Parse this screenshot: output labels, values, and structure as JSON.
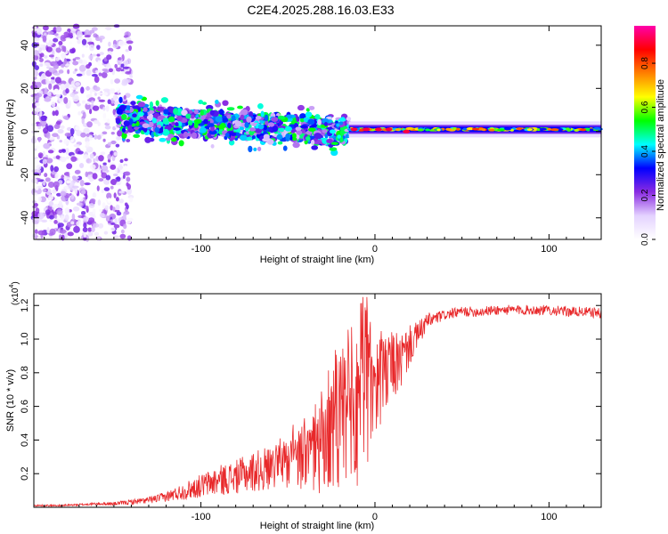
{
  "figure_title": "C2E4.2025.288.16.03.E33",
  "chart_data": [
    {
      "type": "heatmap",
      "title": "C2E4.2025.288.16.03.E33",
      "xlabel": "Height of straight line (km)",
      "ylabel": "Frequency (Hz)",
      "xlim": [
        -196,
        130
      ],
      "ylim": [
        -50,
        49
      ],
      "xticks": [
        -100,
        0,
        100
      ],
      "yticks": [
        -40,
        -20,
        0,
        20,
        40
      ],
      "colorbar": {
        "label": "Normalized spectral amplitude",
        "range": [
          0,
          0.97
        ],
        "ticks": [
          0.0,
          0.2,
          0.4,
          0.6,
          0.8
        ],
        "tick_labels": [
          "0.0",
          "0.2",
          "0.4",
          "0.6",
          "0.8"
        ],
        "colors": [
          "#ffffff",
          "#e4d2ff",
          "#8a2be2",
          "#0000ff",
          "#00ffff",
          "#00ff00",
          "#ffff00",
          "#ff8000",
          "#ff0000",
          "#ff00aa"
        ]
      },
      "regions": [
        {
          "name": "noise",
          "x_range": [
            -196,
            -140
          ],
          "freq_range": [
            -50,
            49
          ],
          "max_amplitude": 0.25
        },
        {
          "name": "signal_band",
          "x_range": [
            -148,
            -15
          ],
          "center_freq_start": 6,
          "center_freq_end": 0,
          "width_hz": 12,
          "max_amplitude": 0.55
        },
        {
          "name": "steady_line",
          "x_range": [
            -15,
            130
          ],
          "center_freq": 1,
          "width_hz": 3,
          "max_amplitude": 0.85
        }
      ]
    },
    {
      "type": "line",
      "xlabel": "Height of straight line (km)",
      "ylabel": "SNR (10 * v/v)",
      "y_multiplier_label": "(x10",
      "y_multiplier_exp": "4",
      "xlim": [
        -196,
        130
      ],
      "ylim": [
        0,
        1.27
      ],
      "xticks": [
        -100,
        0,
        100
      ],
      "yticks": [
        0.2,
        0.4,
        0.6,
        0.8,
        1.0,
        1.2
      ],
      "color": "#e8282a",
      "series": [
        {
          "name": "SNR",
          "x": [
            -196,
            -180,
            -160,
            -150,
            -140,
            -130,
            -120,
            -110,
            -100,
            -90,
            -80,
            -70,
            -60,
            -50,
            -40,
            -30,
            -25,
            -20,
            -15,
            -10,
            -8,
            -5,
            -2,
            0,
            2,
            5,
            8,
            10,
            15,
            20,
            25,
            30,
            40,
            50,
            60,
            70,
            80,
            90,
            100,
            110,
            120,
            130
          ],
          "values": [
            0.01,
            0.01,
            0.02,
            0.02,
            0.03,
            0.04,
            0.06,
            0.09,
            0.12,
            0.15,
            0.17,
            0.2,
            0.22,
            0.25,
            0.28,
            0.33,
            0.38,
            0.42,
            0.45,
            0.5,
            0.6,
            0.7,
            0.75,
            0.7,
            0.75,
            0.72,
            0.78,
            0.82,
            0.85,
            0.95,
            1.02,
            1.1,
            1.14,
            1.16,
            1.16,
            1.17,
            1.17,
            1.17,
            1.17,
            1.16,
            1.16,
            1.15
          ],
          "noise_amplitude": [
            0.005,
            0.005,
            0.008,
            0.01,
            0.015,
            0.02,
            0.03,
            0.05,
            0.07,
            0.09,
            0.1,
            0.12,
            0.14,
            0.16,
            0.2,
            0.3,
            0.35,
            0.45,
            0.5,
            0.55,
            0.6,
            0.55,
            0.5,
            0.35,
            0.3,
            0.25,
            0.22,
            0.2,
            0.18,
            0.12,
            0.08,
            0.05,
            0.03,
            0.03,
            0.03,
            0.03,
            0.03,
            0.03,
            0.03,
            0.03,
            0.03,
            0.03
          ]
        }
      ]
    }
  ]
}
